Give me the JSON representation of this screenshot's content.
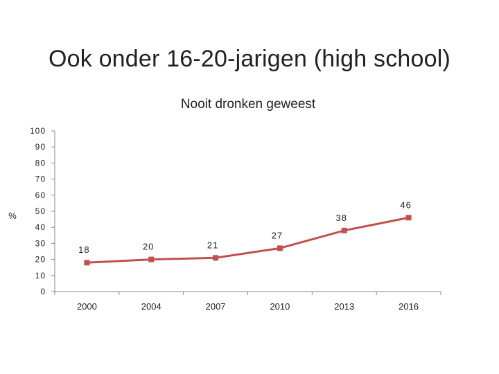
{
  "slide": {
    "title": "Ook onder 16-20-jarigen (high school)"
  },
  "chart_data": {
    "type": "line",
    "title": "Nooit dronken geweest",
    "xlabel": "",
    "ylabel": "%",
    "categories": [
      "2000",
      "2004",
      "2007",
      "2010",
      "2013",
      "2016"
    ],
    "series": [
      {
        "values": [
          18,
          20,
          21,
          27,
          38,
          46
        ],
        "data_labels": [
          "18",
          "20",
          "21",
          "27",
          "38",
          "46"
        ]
      }
    ],
    "ylim": [
      0,
      100
    ],
    "yticks": [
      "0",
      "10",
      "20",
      "30",
      "40",
      "50",
      "60",
      "70",
      "80",
      "90",
      "100"
    ],
    "grid": false,
    "legend": "none",
    "line_color": "#c0504d",
    "marker": "square"
  }
}
